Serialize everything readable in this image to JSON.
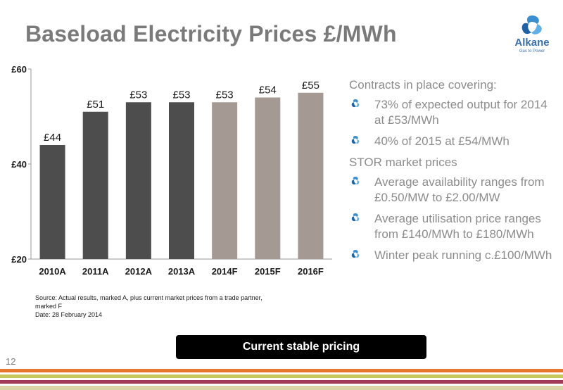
{
  "title": "Baseload Electricity Prices £/MWh",
  "logo": {
    "name": "Alkane",
    "tagline": "Gas to Power"
  },
  "colors": {
    "actual": "#4d4d4d",
    "forecast": "#a49a93",
    "title": "#7a7a7a",
    "bullet_text": "#8c8c8c",
    "accent_blue": "#3a8fd0"
  },
  "chart_data": {
    "type": "bar",
    "categories": [
      "2010A",
      "2011A",
      "2012A",
      "2013A",
      "2014F",
      "2015F",
      "2016F"
    ],
    "values": [
      44,
      51,
      53,
      53,
      53,
      54,
      55
    ],
    "data_labels": [
      "£44",
      "£51",
      "£53",
      "£53",
      "£53",
      "£54",
      "£55"
    ],
    "kind": [
      "actual",
      "actual",
      "actual",
      "actual",
      "forecast",
      "forecast",
      "forecast"
    ],
    "ylim": [
      20,
      60
    ],
    "yticks": [
      20,
      40,
      60
    ],
    "ytick_labels": [
      "£20",
      "£40",
      "£60"
    ],
    "grid": false,
    "title": "",
    "xlabel": "",
    "ylabel": ""
  },
  "source": {
    "line1": "Source: Actual results, marked A, plus current market prices from a trade partner, marked F",
    "line2": "Date:  28 February 2014"
  },
  "bullets": {
    "heading1": "Contracts in place covering:",
    "items1": [
      "73% of expected output for 2014 at £53/MWh",
      "40% of 2015 at £54/MWh"
    ],
    "heading2": "STOR market prices",
    "items2": [
      "Average availability ranges from  £0.50/MW to £2.00/MW",
      "Average utilisation price ranges from £140/MWh to £180/MWh",
      "Winter peak running c.£100/MWh"
    ],
    "icon": "blue-swirl-icon"
  },
  "banner": "Current stable pricing",
  "page_number": "12"
}
